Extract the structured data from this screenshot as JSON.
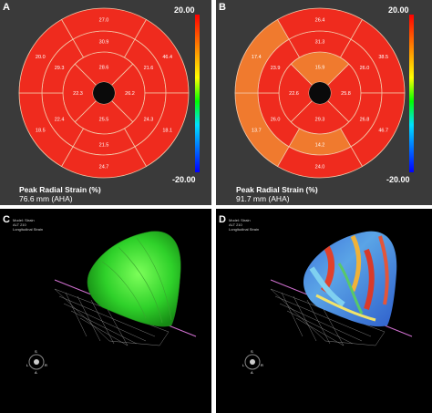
{
  "panels": {
    "A": {
      "label": "A",
      "caption_line1": "Peak Radial Strain (%)",
      "caption_line2": "76.6 mm (AHA)",
      "scale_max": "20.00",
      "scale_min": "-20.00",
      "outer": [
        "27.0",
        "46.4",
        "18.1",
        "24.7",
        "18.5",
        "20.0"
      ],
      "mid": [
        "30.9",
        "21.6",
        "24.3",
        "21.5",
        "22.4",
        "29.3"
      ],
      "apical": [
        "28.6",
        "26.2",
        "25.5",
        "22.3"
      ]
    },
    "B": {
      "label": "B",
      "caption_line1": "Peak Radial Strain (%)",
      "caption_line2": "91.7 mm (AHA)",
      "scale_max": "20.00",
      "scale_min": "-20.00",
      "outer": [
        "26.4",
        "38.5",
        "46.7",
        "24.0",
        "13.7",
        "17.4"
      ],
      "mid": [
        "31.3",
        "26.0",
        "26.8",
        "14.2",
        "26.0",
        "23.9"
      ],
      "apical": [
        "15.9",
        "25.8",
        "29.3",
        "22.6"
      ]
    },
    "C": {
      "label": "C",
      "info_lines": [
        "Model: Strain",
        "ALT 210",
        "Longitudinal Strain"
      ],
      "orient": [
        "L",
        "R",
        "A",
        "S"
      ]
    },
    "D": {
      "label": "D",
      "info_lines": [
        "Model: Strain",
        "ALT 210",
        "Longitudinal Strain"
      ],
      "orient": [
        "L",
        "R",
        "A",
        "S"
      ]
    }
  },
  "colors": {
    "red_segment": "#ef2b1e",
    "orange_segment": "#f07a2e",
    "panel_bg": "#3a3a3a",
    "segment_border": "#f3c7a8"
  },
  "segment_colors": {
    "A": {
      "outer": [
        "red",
        "red",
        "red",
        "red",
        "red",
        "red"
      ],
      "mid": [
        "red",
        "red",
        "red",
        "red",
        "red",
        "red"
      ],
      "apical": [
        "red",
        "red",
        "red",
        "red"
      ]
    },
    "B": {
      "outer": [
        "red",
        "red",
        "red",
        "red",
        "orange",
        "orange"
      ],
      "mid": [
        "red",
        "red",
        "red",
        "orange",
        "red",
        "red"
      ],
      "apical": [
        "orange",
        "red",
        "red",
        "red"
      ]
    }
  }
}
